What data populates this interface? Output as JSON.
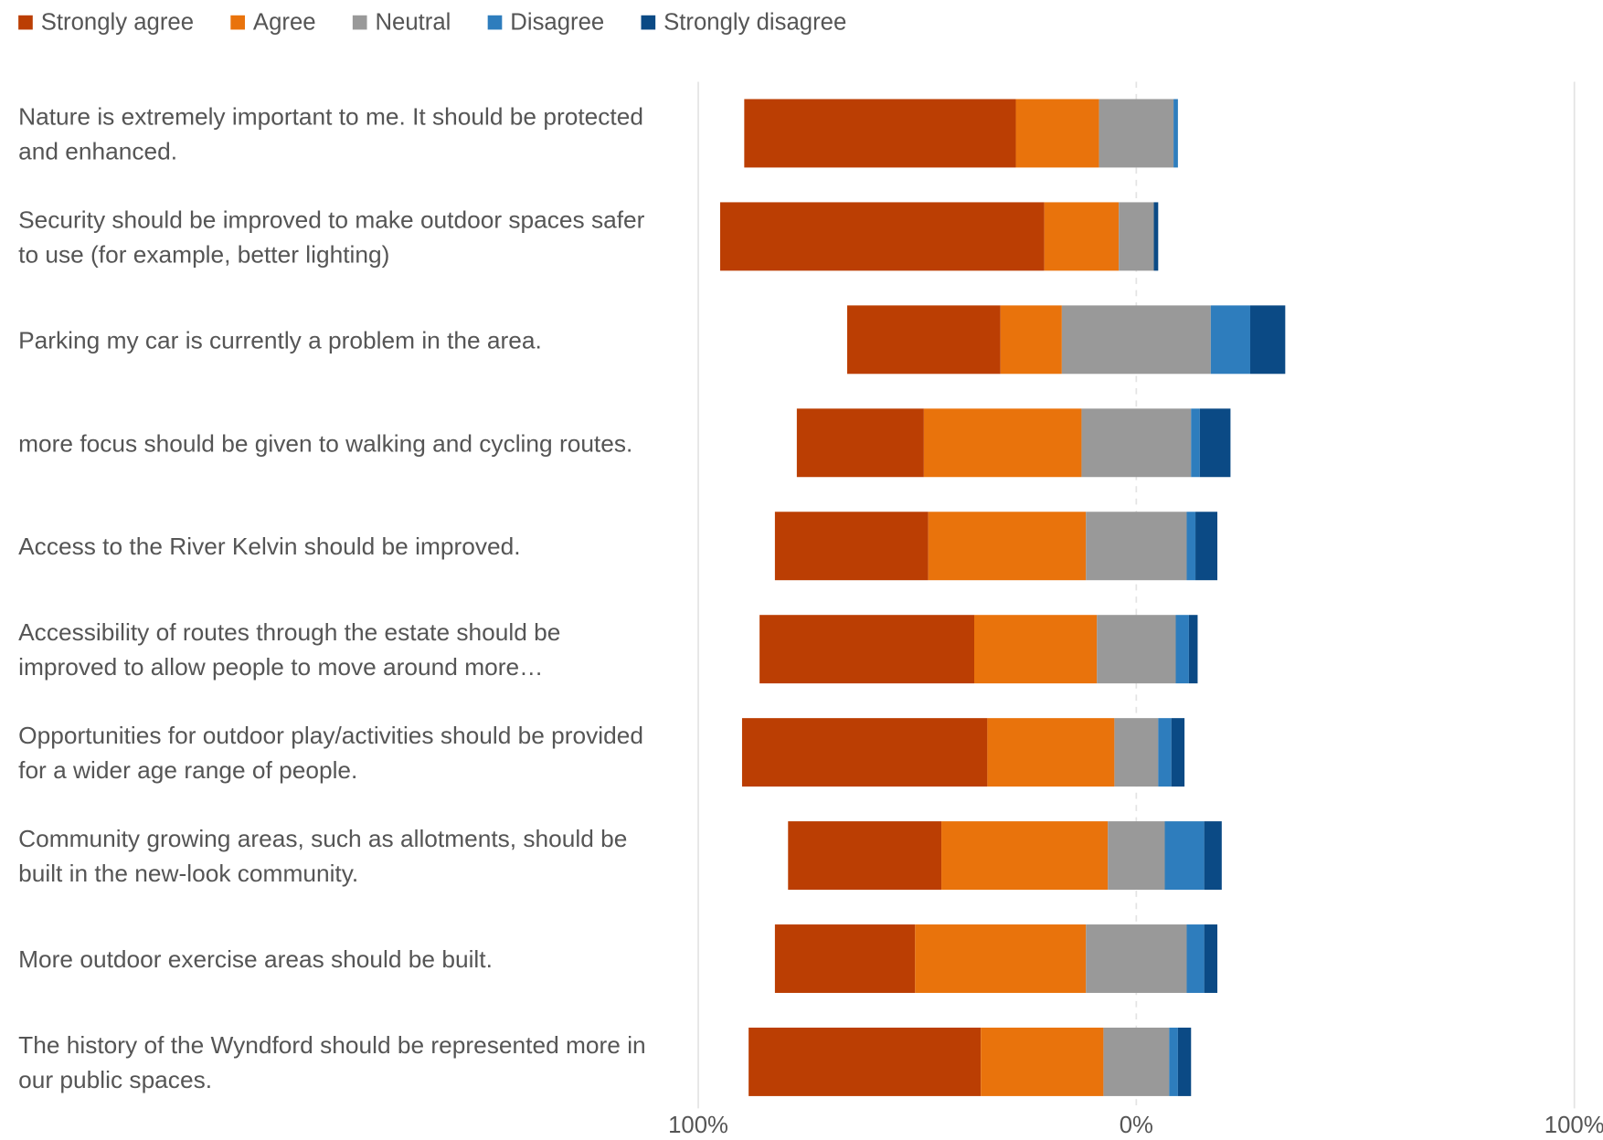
{
  "chart_data": {
    "type": "diverging-bar",
    "categories": [
      "Nature is extremely important to me. It should be protected and enhanced.",
      "Security should be improved to make outdoor spaces safer to use (for example, better lighting)",
      "Parking my car is currently a problem in the area.",
      "more focus should be given to walking and cycling routes.",
      "Access to the River Kelvin should be improved.",
      "Accessibility of routes through the estate should be improved to allow people to move around more…",
      "Opportunities for outdoor play/activities should be provided for a wider age range of people.",
      "Community growing areas, such as allotments, should be built in the new-look community.",
      "More outdoor exercise areas should be built.",
      "The history of the Wyndford should be represented more in our public spaces."
    ],
    "series": [
      {
        "name": "Strongly agree",
        "color": "#bb3e03",
        "values": [
          62,
          74,
          35,
          29,
          35,
          49,
          56,
          35,
          32,
          53
        ]
      },
      {
        "name": "Agree",
        "color": "#e9730c",
        "values": [
          19,
          17,
          14,
          36,
          36,
          28,
          29,
          38,
          39,
          28
        ]
      },
      {
        "name": "Neutral",
        "color": "#999999",
        "values": [
          17,
          8,
          34,
          25,
          23,
          18,
          10,
          13,
          23,
          15
        ]
      },
      {
        "name": "Disagree",
        "color": "#2e7dbd",
        "values": [
          1,
          0,
          9,
          2,
          2,
          3,
          3,
          9,
          4,
          2
        ]
      },
      {
        "name": "Strongly disagree",
        "color": "#0b4a85",
        "values": [
          0,
          1,
          8,
          7,
          5,
          2,
          3,
          4,
          3,
          3
        ]
      }
    ],
    "xlim": [
      -100,
      100
    ],
    "xticks": [
      {
        "value": -100,
        "label": "100%"
      },
      {
        "value": 0,
        "label": "0%"
      },
      {
        "value": 100,
        "label": "100%"
      }
    ],
    "grid": true
  }
}
